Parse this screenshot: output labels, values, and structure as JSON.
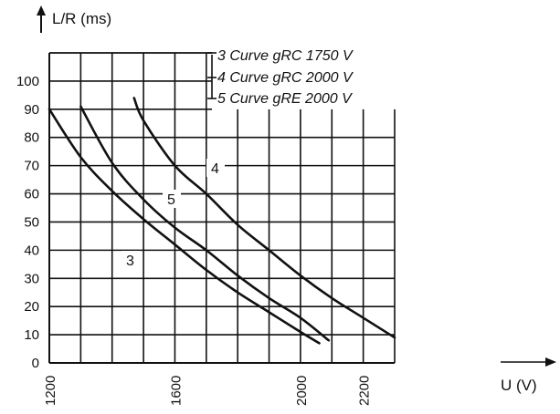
{
  "chart_data": {
    "type": "line",
    "ylabel": "L/R (ms)",
    "xlabel": "U (V)",
    "xlim": [
      1200,
      2300
    ],
    "ylim": [
      0,
      110
    ],
    "x_ticks": [
      1200,
      1600,
      2000,
      2200
    ],
    "y_ticks": [
      0,
      10,
      20,
      30,
      40,
      50,
      60,
      70,
      80,
      90,
      100
    ],
    "grid": true,
    "legend": [
      "3 Curve gRC 1750 V",
      "4 Curve gRC 2000 V",
      "5 Curve gRE 2000 V"
    ],
    "series": [
      {
        "name": "3",
        "x": [
          1200,
          1300,
          1400,
          1500,
          1600,
          1700,
          1800,
          1900,
          2000,
          2060
        ],
        "y": [
          90,
          73,
          61,
          51,
          42,
          33,
          25,
          18,
          11,
          7
        ]
      },
      {
        "name": "5",
        "x": [
          1300,
          1400,
          1500,
          1600,
          1700,
          1800,
          1900,
          2000,
          2090
        ],
        "y": [
          91,
          71,
          58,
          48,
          40,
          31,
          23,
          16,
          8
        ]
      },
      {
        "name": "4",
        "x": [
          1470,
          1500,
          1600,
          1700,
          1800,
          1900,
          2000,
          2100,
          2200,
          2300
        ],
        "y": [
          94,
          86,
          70,
          60,
          49,
          40,
          31,
          23,
          16,
          9
        ]
      }
    ]
  }
}
